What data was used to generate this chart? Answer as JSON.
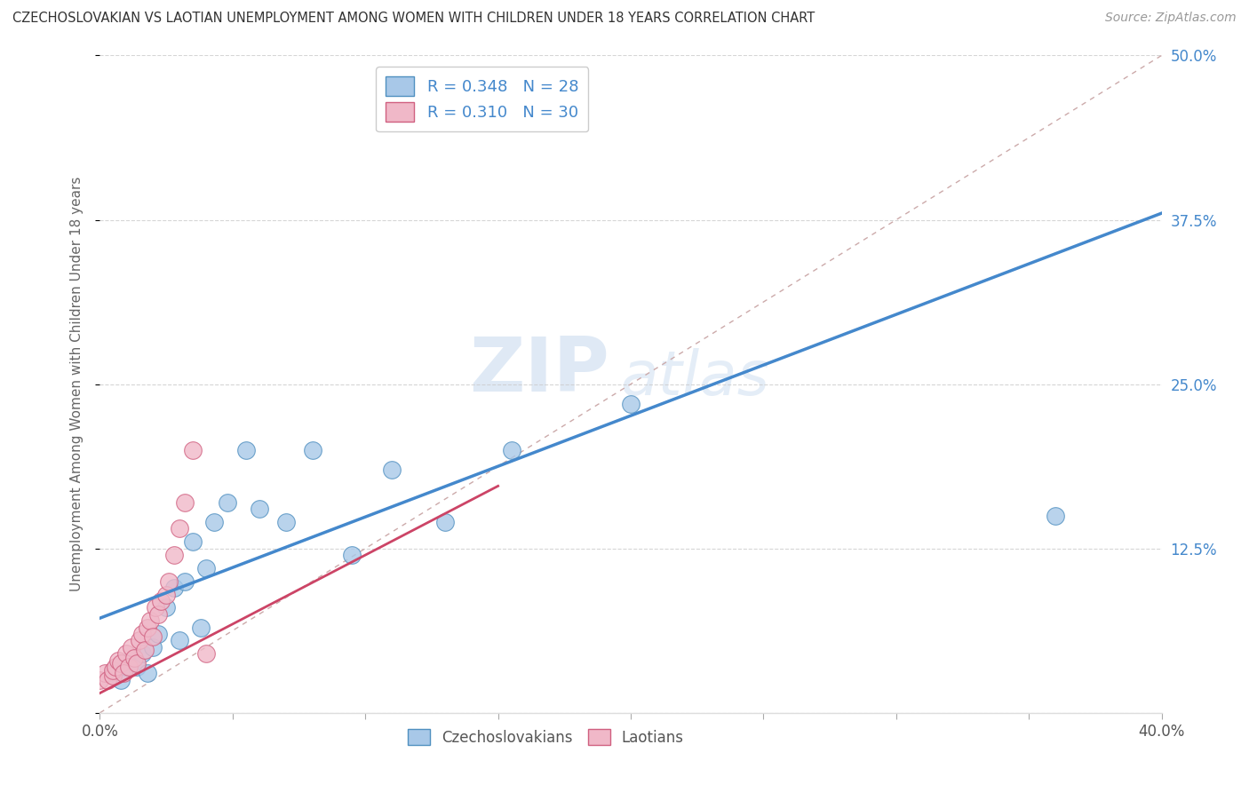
{
  "title": "CZECHOSLOVAKIAN VS LAOTIAN UNEMPLOYMENT AMONG WOMEN WITH CHILDREN UNDER 18 YEARS CORRELATION CHART",
  "source": "Source: ZipAtlas.com",
  "ylabel": "Unemployment Among Women with Children Under 18 years",
  "xlim": [
    0.0,
    0.4
  ],
  "ylim": [
    0.0,
    0.5
  ],
  "xticks": [
    0.0,
    0.05,
    0.1,
    0.15,
    0.2,
    0.25,
    0.3,
    0.35,
    0.4
  ],
  "yticks": [
    0.0,
    0.125,
    0.25,
    0.375,
    0.5
  ],
  "background_color": "#ffffff",
  "grid_color": "#cccccc",
  "blue_color": "#a8c8e8",
  "pink_color": "#f0b8c8",
  "blue_edge_color": "#5090c0",
  "pink_edge_color": "#d06080",
  "blue_line_color": "#4488cc",
  "pink_line_color": "#cc4466",
  "ref_line_color": "#ccaaaa",
  "legend_blue_label": "R = 0.348   N = 28",
  "legend_pink_label": "R = 0.310   N = 30",
  "watermark": "ZIPatlas",
  "legend_bottom_blue": "Czechoslovakians",
  "legend_bottom_pink": "Laotians",
  "blue_line_intercept": 0.072,
  "blue_line_slope": 0.77,
  "pink_line_intercept": 0.015,
  "pink_line_slope": 1.05,
  "czechoslovakian_x": [
    0.005,
    0.008,
    0.01,
    0.012,
    0.014,
    0.016,
    0.018,
    0.02,
    0.022,
    0.025,
    0.028,
    0.03,
    0.032,
    0.035,
    0.038,
    0.04,
    0.043,
    0.048,
    0.055,
    0.06,
    0.07,
    0.08,
    0.095,
    0.11,
    0.13,
    0.155,
    0.2,
    0.36
  ],
  "czechoslovakian_y": [
    0.03,
    0.025,
    0.035,
    0.04,
    0.035,
    0.045,
    0.03,
    0.05,
    0.06,
    0.08,
    0.095,
    0.055,
    0.1,
    0.13,
    0.065,
    0.11,
    0.145,
    0.16,
    0.2,
    0.155,
    0.145,
    0.2,
    0.12,
    0.185,
    0.145,
    0.2,
    0.235,
    0.15
  ],
  "laotian_x": [
    0.0,
    0.002,
    0.003,
    0.005,
    0.005,
    0.006,
    0.007,
    0.008,
    0.009,
    0.01,
    0.011,
    0.012,
    0.013,
    0.014,
    0.015,
    0.016,
    0.017,
    0.018,
    0.019,
    0.02,
    0.021,
    0.022,
    0.023,
    0.025,
    0.026,
    0.028,
    0.03,
    0.032,
    0.035,
    0.04
  ],
  "laotian_y": [
    0.025,
    0.03,
    0.025,
    0.028,
    0.032,
    0.035,
    0.04,
    0.038,
    0.03,
    0.045,
    0.035,
    0.05,
    0.042,
    0.038,
    0.055,
    0.06,
    0.048,
    0.065,
    0.07,
    0.058,
    0.08,
    0.075,
    0.085,
    0.09,
    0.1,
    0.12,
    0.14,
    0.16,
    0.2,
    0.045
  ]
}
